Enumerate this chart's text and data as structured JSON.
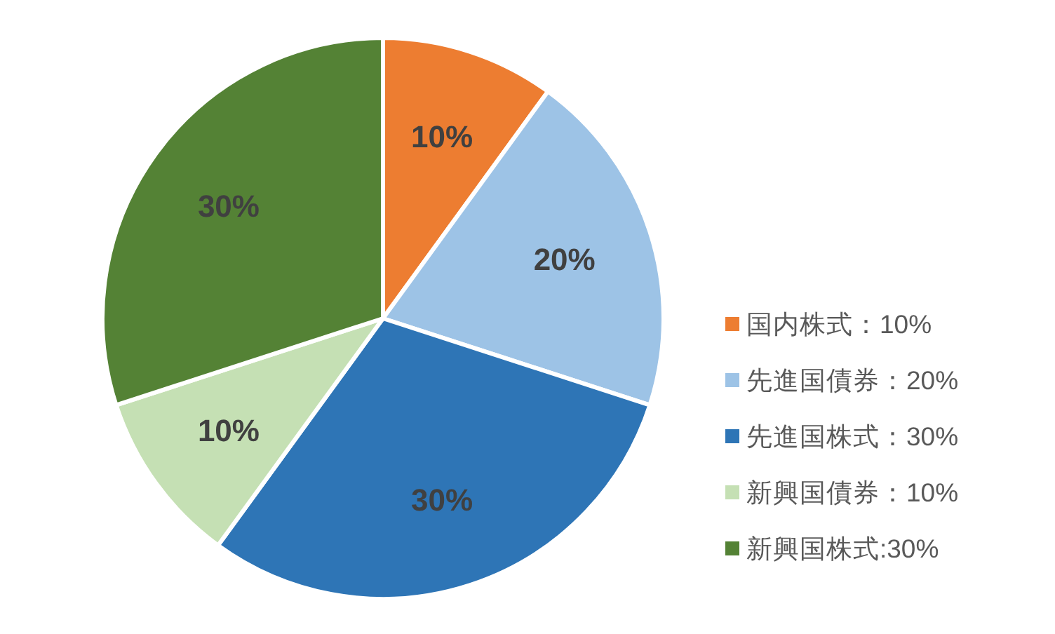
{
  "chart_data": {
    "type": "pie",
    "categories": [
      "国内株式：10%",
      "先進国債券：20%",
      "先進国株式：30%",
      "新興国債券：10%",
      "新興国株式:30%"
    ],
    "values": [
      10,
      20,
      30,
      10,
      30
    ],
    "colors": [
      "#ed7d31",
      "#9dc3e6",
      "#2e75b6",
      "#c5e0b4",
      "#548235"
    ],
    "value_labels": [
      "10%",
      "20%",
      "30%",
      "10%",
      "30%"
    ],
    "legend": "right"
  }
}
